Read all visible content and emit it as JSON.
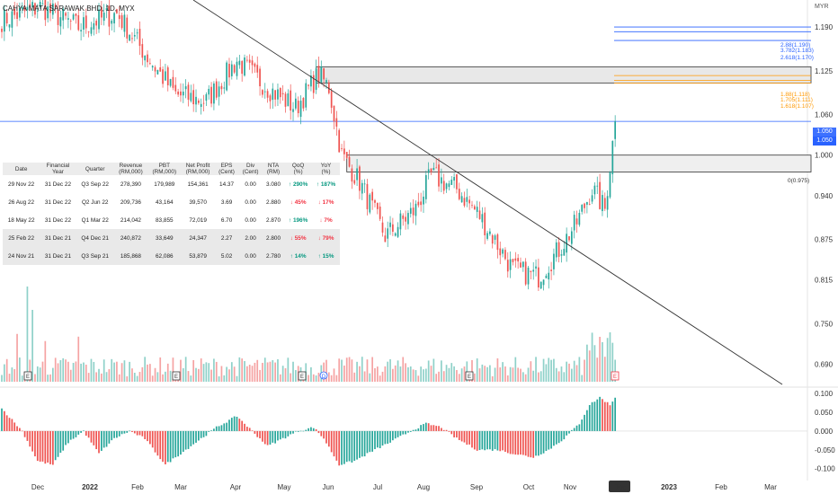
{
  "header": {
    "title": "CAHYA MATA SARAWAK BHD, 1D, MYX",
    "currency": "MYR"
  },
  "colors": {
    "up": "#26a69a",
    "down": "#ef5350",
    "vol_up": "#8fd1c9",
    "vol_down": "#f5a3a3",
    "fib_blue": "#2962ff",
    "fib_orange": "#ff9800",
    "price_line": "#2962ff"
  },
  "price_axis": {
    "ticks": [
      "1.190",
      "1.125",
      "1.060",
      "1.000",
      "0.940",
      "0.875",
      "0.815",
      "0.750",
      "0.690"
    ],
    "current_price": "1.050",
    "current_price_prev": "1.050"
  },
  "osc_axis": {
    "ticks": [
      "0.100",
      "0.050",
      "0.000",
      "-0.050",
      "-0.100"
    ]
  },
  "time_axis": {
    "ticks": [
      "Dec",
      "2022",
      "Feb",
      "Mar",
      "Apr",
      "May",
      "Jun",
      "Jul",
      "Aug",
      "Sep",
      "Oct",
      "Nov",
      "Dec",
      "2023",
      "Feb",
      "Mar"
    ],
    "highlighted": "Dec"
  },
  "fib_levels": {
    "blue": [
      "2.88(1.190)",
      "3.782(1.183)",
      "2.618(1.170)"
    ],
    "orange": [
      "1.88(1.118)",
      "1.705(1.111)",
      "1.618(1.107)"
    ],
    "zero": "0(0.975)"
  },
  "events": [
    "E",
    "E",
    "E",
    "D",
    "E",
    "E"
  ],
  "table": {
    "headers": [
      [
        "Date",
        ""
      ],
      [
        "Financial",
        "Year"
      ],
      [
        "Quarter",
        ""
      ],
      [
        "Revenue",
        "(RM,000)"
      ],
      [
        "PBT",
        "(RM,000)"
      ],
      [
        "Net Profit",
        "(RM,000)"
      ],
      [
        "EPS",
        "(Cent)"
      ],
      [
        "Div",
        "(Cent)"
      ],
      [
        "NTA",
        "(RM)"
      ],
      [
        "QoQ",
        "(%)"
      ],
      [
        "YoY",
        "(%)"
      ]
    ],
    "rows": [
      {
        "date": "29 Nov 22",
        "fy": "31 Dec 22",
        "quarter": "Q3 Sep 22",
        "revenue": "278,390",
        "pbt": "179,989",
        "np": "154,361",
        "eps": "14.37",
        "div": "0.00",
        "nta": "3.080",
        "qoq": "290%",
        "qoq_dir": "up",
        "yoy": "187%",
        "yoy_dir": "up"
      },
      {
        "date": "26 Aug 22",
        "fy": "31 Dec 22",
        "quarter": "Q2 Jun 22",
        "revenue": "209,736",
        "pbt": "43,164",
        "np": "39,570",
        "eps": "3.69",
        "div": "0.00",
        "nta": "2.880",
        "qoq": "45%",
        "qoq_dir": "down",
        "yoy": "17%",
        "yoy_dir": "down"
      },
      {
        "date": "18 May 22",
        "fy": "31 Dec 22",
        "quarter": "Q1 Mar 22",
        "revenue": "214,042",
        "pbt": "83,855",
        "np": "72,019",
        "eps": "6.70",
        "div": "0.00",
        "nta": "2.870",
        "qoq": "196%",
        "qoq_dir": "up",
        "yoy": "7%",
        "yoy_dir": "down"
      },
      {
        "date": "25 Feb 22",
        "fy": "31 Dec 21",
        "quarter": "Q4 Dec 21",
        "revenue": "240,872",
        "pbt": "33,649",
        "np": "24,347",
        "eps": "2.27",
        "div": "2.00",
        "nta": "2.800",
        "qoq": "55%",
        "qoq_dir": "down",
        "yoy": "79%",
        "yoy_dir": "down"
      },
      {
        "date": "24 Nov 21",
        "fy": "31 Dec 21",
        "quarter": "Q3 Sep 21",
        "revenue": "185,868",
        "pbt": "62,086",
        "np": "53,879",
        "eps": "5.02",
        "div": "0.00",
        "nta": "2.780",
        "qoq": "14%",
        "qoq_dir": "up",
        "yoy": "15%",
        "yoy_dir": "up"
      }
    ]
  },
  "chart_data": {
    "type": "candlestick",
    "title": "CAHYA MATA SARAWAK BHD, 1D, MYX",
    "currency": "MYR",
    "ylim": [
      0.66,
      1.23
    ],
    "keypoints": [
      {
        "t": 0,
        "p": 1.2
      },
      {
        "t": 15,
        "p": 1.22
      },
      {
        "t": 30,
        "p": 1.19
      },
      {
        "t": 45,
        "p": 1.21
      },
      {
        "t": 58,
        "p": 1.14
      },
      {
        "t": 68,
        "p": 1.09
      },
      {
        "t": 80,
        "p": 1.08
      },
      {
        "t": 92,
        "p": 1.14
      },
      {
        "t": 104,
        "p": 1.1
      },
      {
        "t": 115,
        "p": 1.07
      },
      {
        "t": 124,
        "p": 1.12
      },
      {
        "t": 128,
        "p": 1.1
      },
      {
        "t": 133,
        "p": 1.0
      },
      {
        "t": 140,
        "p": 0.96
      },
      {
        "t": 150,
        "p": 0.88
      },
      {
        "t": 162,
        "p": 0.92
      },
      {
        "t": 168,
        "p": 0.97
      },
      {
        "t": 178,
        "p": 0.95
      },
      {
        "t": 187,
        "p": 0.91
      },
      {
        "t": 200,
        "p": 0.83
      },
      {
        "t": 210,
        "p": 0.82
      },
      {
        "t": 218,
        "p": 0.86
      },
      {
        "t": 225,
        "p": 0.9
      },
      {
        "t": 231,
        "p": 0.95
      },
      {
        "t": 236,
        "p": 0.92
      },
      {
        "t": 240,
        "p": 1.05
      }
    ],
    "bars": 241,
    "levels": {
      "resistance_box": [
        1.107,
        1.131
      ],
      "support_box": [
        0.975,
        1.0
      ],
      "current_price": 1.05,
      "fib_blue": [
        1.19,
        1.183,
        1.17
      ],
      "fib_orange": [
        1.118,
        1.111,
        1.107
      ]
    },
    "volume_pattern": "spikes near Dec 2021 start and Nov 2022 end",
    "oscillator": {
      "ylim": [
        -0.12,
        0.11
      ],
      "zero_line": 0.0
    }
  }
}
